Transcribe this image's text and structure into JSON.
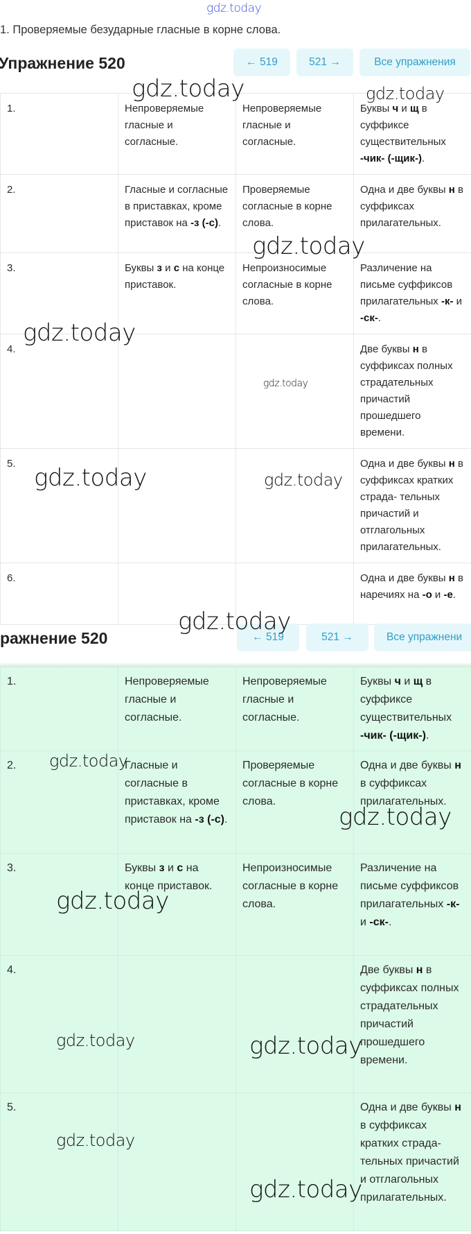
{
  "watermark": "gdz.today",
  "subtitle": "1. Проверяемые безударные гласные в корне слова.",
  "header1": {
    "title": "Упражнение 520",
    "prev": "← 519",
    "next": "521 →",
    "all": "Все упражнения"
  },
  "header2": {
    "title": "ражнение 520",
    "prev": "← 519",
    "next": "521 →",
    "all": "Все упражнени"
  },
  "colors": {
    "button_bg": "#e6f7fb",
    "button_text": "#2f9fc6",
    "highlight_bg": "#dcfae8"
  },
  "rows": [
    [
      "1.",
      [
        "Непроверяемые гласные и согласные."
      ],
      [
        "Непроверяемые гласные и согласные."
      ],
      [
        "Буквы ",
        "ч",
        " и ",
        "щ",
        " в суффиксе существительных ",
        "-чик- (-щик-)",
        "."
      ]
    ],
    [
      "2.",
      [
        "Гласные и согласные в приставках, кроме приставок на ",
        "-з (-с)",
        "."
      ],
      [
        "Проверяемые согласные в корне слова."
      ],
      [
        "Одна и две буквы ",
        "н",
        " в суффиксах прилагательных."
      ]
    ],
    [
      "3.",
      [
        "Буквы ",
        "з",
        " и ",
        "с",
        " на конце приставок."
      ],
      [
        "Непроизносимые согласные в корне слова."
      ],
      [
        "Различение на письме суффиксов прилагательных ",
        "-к-",
        " и ",
        "-ск-",
        "."
      ]
    ],
    [
      "4.",
      [
        ""
      ],
      [
        ""
      ],
      [
        "Две буквы ",
        "н",
        " в суффиксах полных страдательных причастий прошедшего времени."
      ]
    ],
    [
      "5.",
      [
        ""
      ],
      [
        ""
      ],
      [
        "Одна и две буквы ",
        "н",
        " в суффиксах кратких страда- тельных причастий и отглагольных прилагательных."
      ]
    ],
    [
      "6.",
      [
        ""
      ],
      [
        ""
      ],
      [
        "Одна и две буквы ",
        "н",
        " в наречиях на ",
        "-о",
        " и ",
        "-е",
        "."
      ]
    ]
  ]
}
